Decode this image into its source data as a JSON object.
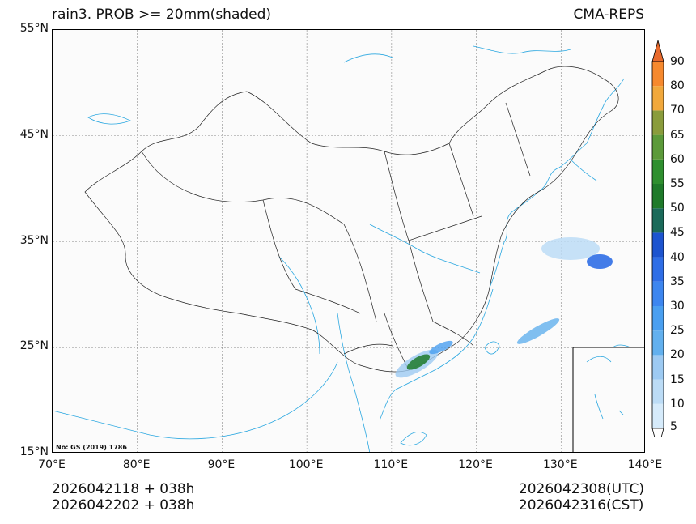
{
  "header": {
    "title_left": "rain3. PROB >= 20mm(shaded)",
    "title_right": "CMA-REPS"
  },
  "axes": {
    "lat_ticks": [
      {
        "label": "55°N",
        "lat": 55
      },
      {
        "label": "45°N",
        "lat": 45
      },
      {
        "label": "35°N",
        "lat": 35
      },
      {
        "label": "25°N",
        "lat": 25
      },
      {
        "label": "15°N",
        "lat": 15
      }
    ],
    "lon_ticks": [
      {
        "label": "70°E",
        "lon": 70
      },
      {
        "label": "80°E",
        "lon": 80
      },
      {
        "label": "90°E",
        "lon": 90
      },
      {
        "label": "100°E",
        "lon": 100
      },
      {
        "label": "110°E",
        "lon": 110
      },
      {
        "label": "120°E",
        "lon": 120
      },
      {
        "label": "130°E",
        "lon": 130
      },
      {
        "label": "140°E",
        "lon": 140
      }
    ],
    "lon_range": [
      70,
      140
    ],
    "lat_range": [
      15,
      55
    ]
  },
  "footer": {
    "init_utc": "2026042118  +  038h",
    "init_cst": "2026042202  +  038h",
    "valid_utc": "2026042308(UTC)",
    "valid_cst": "2026042316(CST)",
    "map_note": "No: GS (2019) 1786"
  },
  "colorbar": {
    "levels": [
      "5",
      "10",
      "15",
      "20",
      "25",
      "30",
      "35",
      "40",
      "45",
      "50",
      "55",
      "60",
      "65",
      "70",
      "80",
      "90"
    ],
    "colors": [
      "#d6ebfb",
      "#bcdcf6",
      "#9dcaf2",
      "#62b0ee",
      "#4a9ff0",
      "#3d86ef",
      "#2f6ee6",
      "#1d54cf",
      "#1b6a5a",
      "#1f7a2a",
      "#2f8f2f",
      "#5c9a3a",
      "#8a9c3c",
      "#f1a83c",
      "#f6892e",
      "#e86a2d"
    ]
  },
  "colors": {
    "coast": "#2aa7e0",
    "border": "#222222",
    "grid": "#888888"
  }
}
